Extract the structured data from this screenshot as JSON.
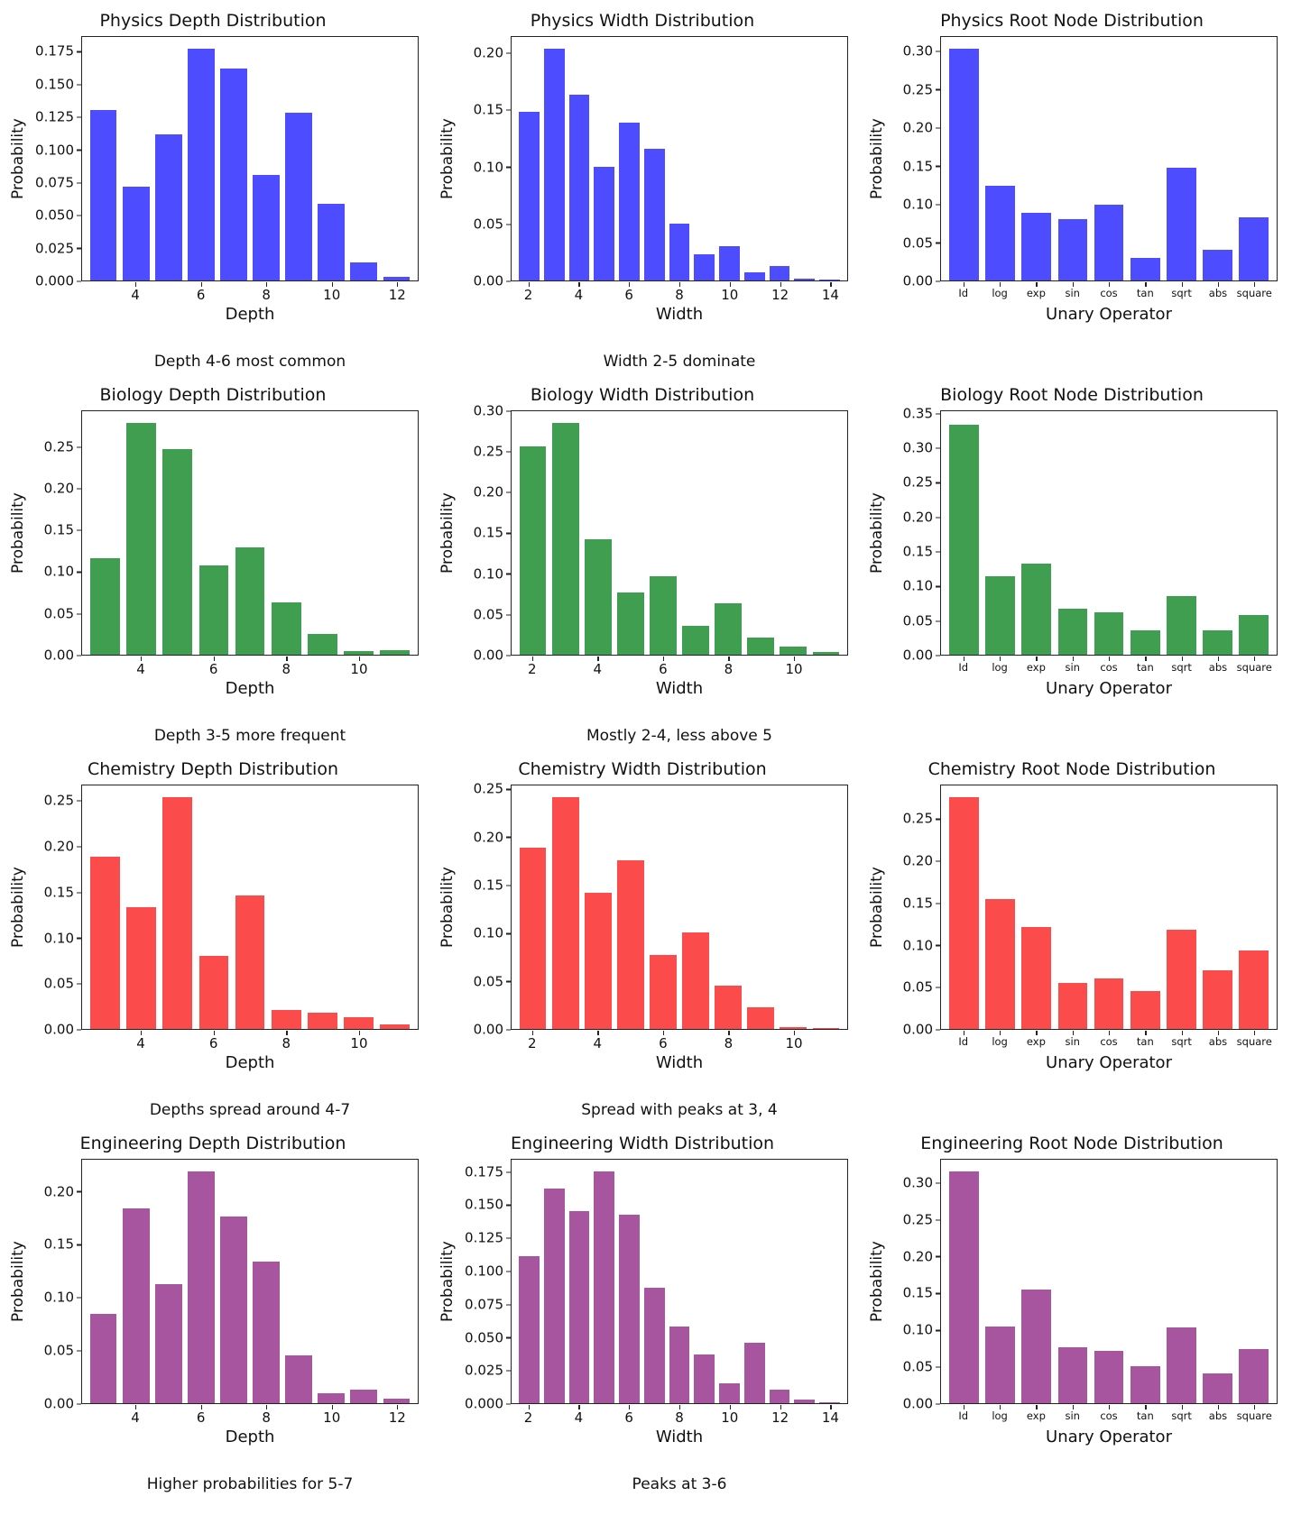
{
  "page": {
    "background": "#ffffff"
  },
  "chart_data": [
    {
      "id": "physics-depth",
      "type": "bar",
      "title": "Physics Depth Distribution",
      "xlabel": "Depth",
      "ylabel": "Probability",
      "caption": "Depth 4-6 most common",
      "color": "#4d4dff",
      "ymax": 0.187,
      "yticks": [
        "0.000",
        "0.025",
        "0.050",
        "0.075",
        "0.100",
        "0.125",
        "0.150",
        "0.175"
      ],
      "x": [
        3,
        4,
        5,
        6,
        7,
        8,
        9,
        10,
        11,
        12
      ],
      "xticks": [
        4,
        6,
        8,
        10,
        12
      ],
      "values": [
        0.131,
        0.072,
        0.112,
        0.178,
        0.163,
        0.081,
        0.129,
        0.059,
        0.014,
        0.003
      ]
    },
    {
      "id": "physics-width",
      "type": "bar",
      "title": "Physics Width Distribution",
      "xlabel": "Width",
      "ylabel": "Probability",
      "caption": "Width 2-5 dominate",
      "color": "#4d4dff",
      "ymax": 0.215,
      "yticks": [
        "0.00",
        "0.05",
        "0.10",
        "0.15",
        "0.20"
      ],
      "x": [
        2,
        3,
        4,
        5,
        6,
        7,
        8,
        9,
        10,
        11,
        12,
        13,
        14
      ],
      "xticks": [
        2,
        4,
        6,
        8,
        10,
        12,
        14
      ],
      "values": [
        0.149,
        0.205,
        0.164,
        0.1,
        0.139,
        0.116,
        0.05,
        0.023,
        0.03,
        0.007,
        0.013,
        0.002,
        0.001
      ]
    },
    {
      "id": "physics-root",
      "type": "bar",
      "title": "Physics Root Node Distribution",
      "xlabel": "Unary Operator",
      "ylabel": "Probability",
      "caption": "",
      "color": "#4d4dff",
      "ymax": 0.32,
      "yticks": [
        "0.00",
        "0.05",
        "0.10",
        "0.15",
        "0.20",
        "0.25",
        "0.30"
      ],
      "x": [
        "Id",
        "log",
        "exp",
        "sin",
        "cos",
        "tan",
        "sqrt",
        "abs",
        "square"
      ],
      "xticks": [
        "Id",
        "log",
        "exp",
        "sin",
        "cos",
        "tan",
        "sqrt",
        "abs",
        "square"
      ],
      "values": [
        0.305,
        0.125,
        0.089,
        0.081,
        0.099,
        0.03,
        0.148,
        0.04,
        0.083
      ]
    },
    {
      "id": "biology-depth",
      "type": "bar",
      "title": "Biology Depth Distribution",
      "xlabel": "Depth",
      "ylabel": "Probability",
      "caption": "Depth 3-5 more frequent",
      "color": "#3f9e4f",
      "ymax": 0.294,
      "yticks": [
        "0.00",
        "0.05",
        "0.10",
        "0.15",
        "0.20",
        "0.25"
      ],
      "x": [
        3,
        4,
        5,
        6,
        7,
        8,
        9,
        10,
        11
      ],
      "xticks": [
        4,
        6,
        8,
        10
      ],
      "values": [
        0.117,
        0.28,
        0.248,
        0.108,
        0.13,
        0.063,
        0.025,
        0.004,
        0.006
      ]
    },
    {
      "id": "biology-width",
      "type": "bar",
      "title": "Biology Width Distribution",
      "xlabel": "Width",
      "ylabel": "Probability",
      "caption": "Mostly 2-4, less above 5",
      "color": "#3f9e4f",
      "ymax": 0.301,
      "yticks": [
        "0.00",
        "0.05",
        "0.10",
        "0.15",
        "0.20",
        "0.25",
        "0.30"
      ],
      "x": [
        2,
        3,
        4,
        5,
        6,
        7,
        8,
        9,
        10,
        11
      ],
      "xticks": [
        2,
        4,
        6,
        8,
        10
      ],
      "values": [
        0.258,
        0.287,
        0.143,
        0.077,
        0.097,
        0.036,
        0.064,
        0.021,
        0.01,
        0.003
      ]
    },
    {
      "id": "biology-root",
      "type": "bar",
      "title": "Biology Root Node Distribution",
      "xlabel": "Unary Operator",
      "ylabel": "Probability",
      "caption": "",
      "color": "#3f9e4f",
      "ymax": 0.355,
      "yticks": [
        "0.00",
        "0.05",
        "0.10",
        "0.15",
        "0.20",
        "0.25",
        "0.30",
        "0.35"
      ],
      "x": [
        "Id",
        "log",
        "exp",
        "sin",
        "cos",
        "tan",
        "sqrt",
        "abs",
        "square"
      ],
      "xticks": [
        "Id",
        "log",
        "exp",
        "sin",
        "cos",
        "tan",
        "sqrt",
        "abs",
        "square"
      ],
      "values": [
        0.335,
        0.115,
        0.133,
        0.067,
        0.062,
        0.036,
        0.085,
        0.036,
        0.058
      ]
    },
    {
      "id": "chemistry-depth",
      "type": "bar",
      "title": "Chemistry Depth Distribution",
      "xlabel": "Depth",
      "ylabel": "Probability",
      "caption": "Depths spread around 4-7",
      "color": "#fb4b4b",
      "ymax": 0.268,
      "yticks": [
        "0.00",
        "0.05",
        "0.10",
        "0.15",
        "0.20",
        "0.25"
      ],
      "x": [
        3,
        4,
        5,
        6,
        7,
        8,
        9,
        10,
        11
      ],
      "xticks": [
        4,
        6,
        8,
        10
      ],
      "values": [
        0.19,
        0.134,
        0.255,
        0.08,
        0.147,
        0.021,
        0.018,
        0.013,
        0.005
      ]
    },
    {
      "id": "chemistry-width",
      "type": "bar",
      "title": "Chemistry Width Distribution",
      "xlabel": "Width",
      "ylabel": "Probability",
      "caption": "Spread with peaks at 3, 4",
      "color": "#fb4b4b",
      "ymax": 0.255,
      "yticks": [
        "0.00",
        "0.05",
        "0.10",
        "0.15",
        "0.20",
        "0.25"
      ],
      "x": [
        2,
        3,
        4,
        5,
        6,
        7,
        8,
        9,
        10,
        11
      ],
      "xticks": [
        2,
        4,
        6,
        8,
        10
      ],
      "values": [
        0.19,
        0.243,
        0.143,
        0.177,
        0.077,
        0.101,
        0.045,
        0.023,
        0.002,
        0.001
      ]
    },
    {
      "id": "chemistry-root",
      "type": "bar",
      "title": "Chemistry Root Node Distribution",
      "xlabel": "Unary Operator",
      "ylabel": "Probability",
      "caption": "",
      "color": "#fb4b4b",
      "ymax": 0.291,
      "yticks": [
        "0.00",
        "0.05",
        "0.10",
        "0.15",
        "0.20",
        "0.25"
      ],
      "x": [
        "Id",
        "log",
        "exp",
        "sin",
        "cos",
        "tan",
        "sqrt",
        "abs",
        "square"
      ],
      "xticks": [
        "Id",
        "log",
        "exp",
        "sin",
        "cos",
        "tan",
        "sqrt",
        "abs",
        "square"
      ],
      "values": [
        0.277,
        0.155,
        0.122,
        0.055,
        0.06,
        0.045,
        0.119,
        0.07,
        0.094
      ]
    },
    {
      "id": "engineering-depth",
      "type": "bar",
      "title": "Engineering Depth Distribution",
      "xlabel": "Depth",
      "ylabel": "Probability",
      "caption": "Higher probabilities for 5-7",
      "color": "#a855a0",
      "ymax": 0.231,
      "yticks": [
        "0.00",
        "0.05",
        "0.10",
        "0.15",
        "0.20"
      ],
      "x": [
        3,
        4,
        5,
        6,
        7,
        8,
        9,
        10,
        11,
        12
      ],
      "xticks": [
        4,
        6,
        8,
        10,
        12
      ],
      "values": [
        0.085,
        0.185,
        0.113,
        0.22,
        0.177,
        0.134,
        0.045,
        0.009,
        0.013,
        0.004
      ]
    },
    {
      "id": "engineering-width",
      "type": "bar",
      "title": "Engineering Width Distribution",
      "xlabel": "Width",
      "ylabel": "Probability",
      "caption": "Peaks at 3-6",
      "color": "#a855a0",
      "ymax": 0.185,
      "yticks": [
        "0.000",
        "0.025",
        "0.050",
        "0.075",
        "0.100",
        "0.125",
        "0.150",
        "0.175"
      ],
      "x": [
        2,
        3,
        4,
        5,
        6,
        7,
        8,
        9,
        10,
        11,
        12,
        13,
        14
      ],
      "xticks": [
        2,
        4,
        6,
        8,
        10,
        12,
        14
      ],
      "values": [
        0.112,
        0.163,
        0.146,
        0.176,
        0.143,
        0.088,
        0.058,
        0.037,
        0.015,
        0.046,
        0.01,
        0.003,
        0.001
      ]
    },
    {
      "id": "engineering-root",
      "type": "bar",
      "title": "Engineering Root Node Distribution",
      "xlabel": "Unary Operator",
      "ylabel": "Probability",
      "caption": "",
      "color": "#a855a0",
      "ymax": 0.333,
      "yticks": [
        "0.00",
        "0.05",
        "0.10",
        "0.15",
        "0.20",
        "0.25",
        "0.30"
      ],
      "x": [
        "Id",
        "log",
        "exp",
        "sin",
        "cos",
        "tan",
        "sqrt",
        "abs",
        "square"
      ],
      "xticks": [
        "Id",
        "log",
        "exp",
        "sin",
        "cos",
        "tan",
        "sqrt",
        "abs",
        "square"
      ],
      "values": [
        0.317,
        0.105,
        0.155,
        0.077,
        0.071,
        0.051,
        0.104,
        0.041,
        0.074
      ]
    }
  ]
}
